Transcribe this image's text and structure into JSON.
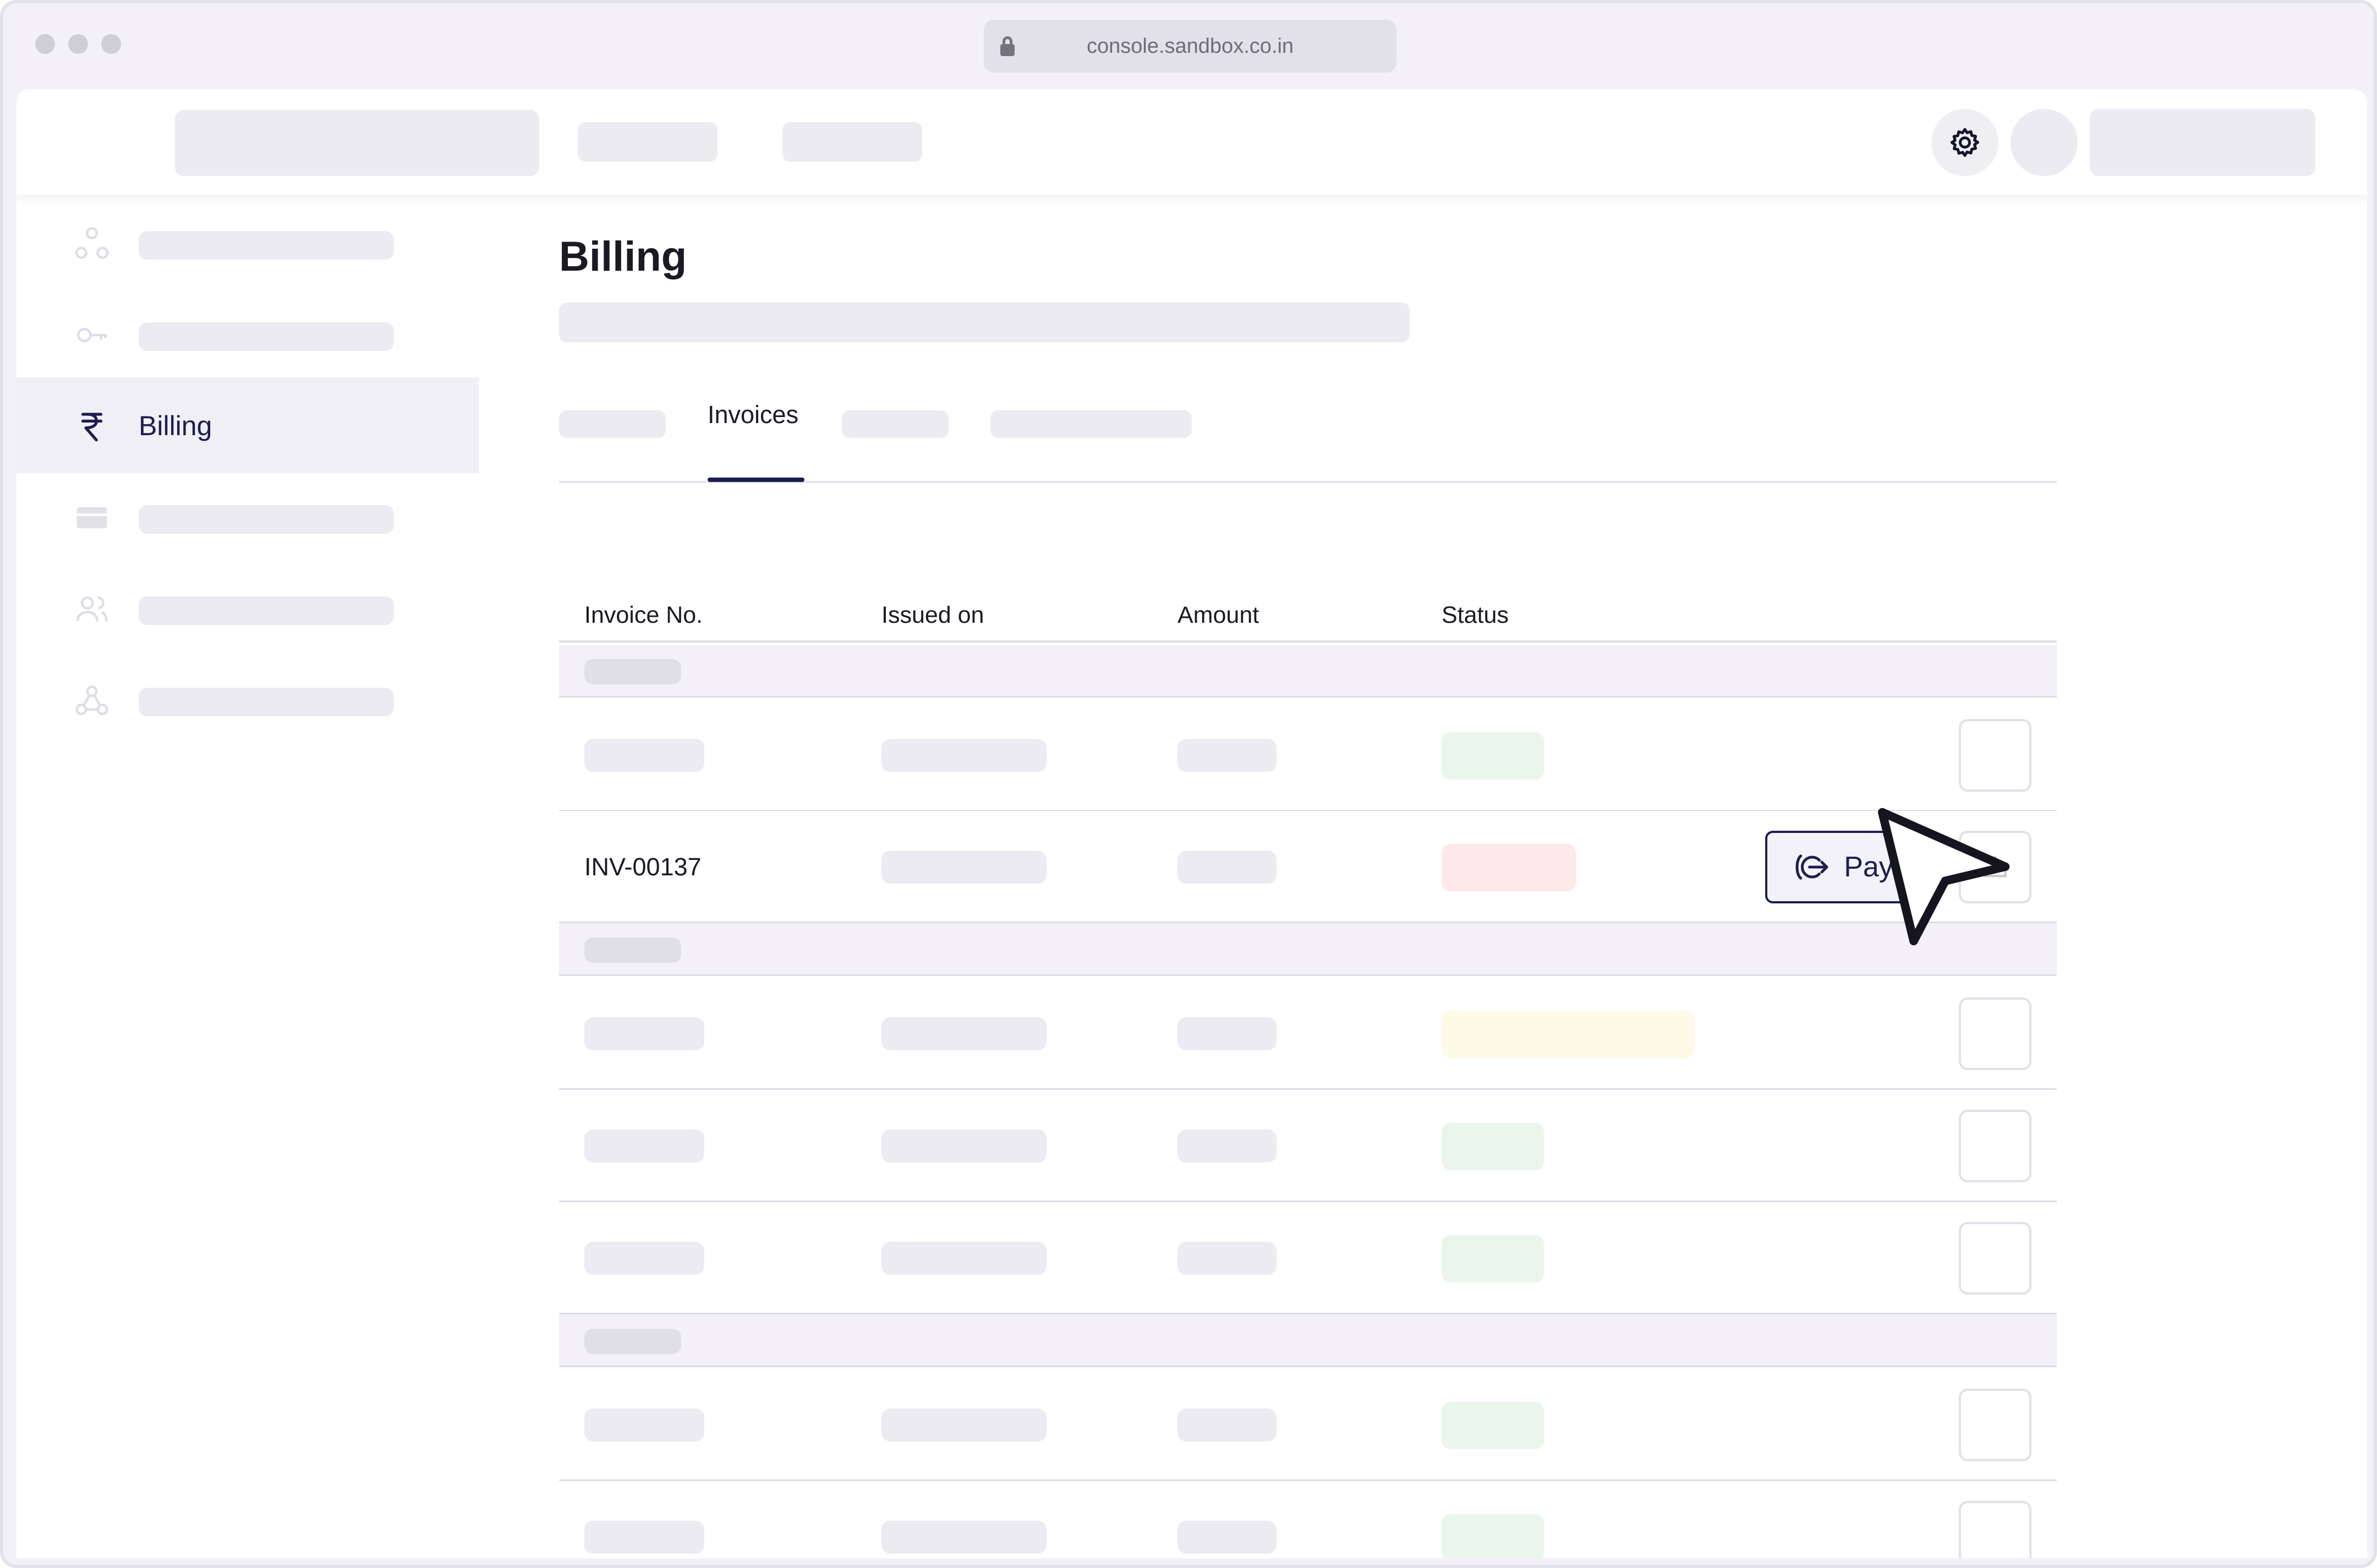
{
  "browser": {
    "url": "console.sandbox.co.in"
  },
  "main": {
    "title": "Billing",
    "tabs": {
      "active": "Invoices"
    },
    "table": {
      "headers": {
        "invoice_no": "Invoice No.",
        "issued_on": "Issued on",
        "amount": "Amount",
        "status": "Status"
      },
      "highlighted_row": {
        "invoice_no": "INV-00137",
        "pay_label": "Pay"
      }
    }
  },
  "sidebar": {
    "active_label": "Billing"
  },
  "colors": {
    "accent": "#1d1d4f",
    "status_paid": "#eaf6ec",
    "status_overdue": "#fde8ea",
    "status_pending": "#fefae8"
  }
}
